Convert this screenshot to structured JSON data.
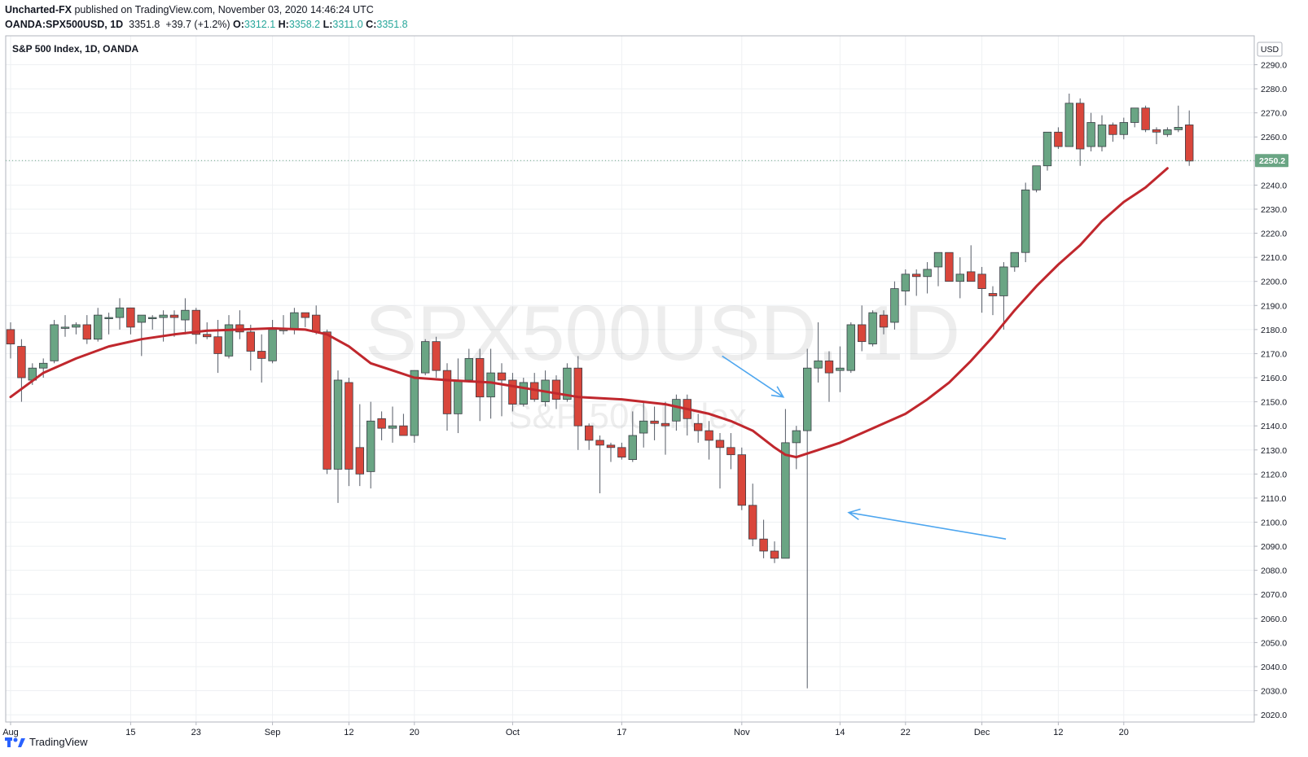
{
  "header": {
    "author": "Uncharted-FX",
    "published": "published on TradingView.com, November 03, 2020 14:46:24 UTC",
    "symbol": "OANDA:SPX500USD, 1D",
    "price": "3351.8",
    "change": "+39.7 (+1.2%)",
    "o_label": "O:",
    "o_value": "3312.1",
    "h_label": "H:",
    "h_value": "3358.2",
    "l_label": "L:",
    "l_value": "3311.0",
    "c_label": "C:",
    "c_value": "3351.8"
  },
  "footer": {
    "brand": "TradingView"
  },
  "colors": {
    "up": "#6aa584",
    "down": "#d9463b",
    "ma": "#c0272d",
    "annotation": "#4ea6ef",
    "grid": "#eef0f3"
  },
  "chart_data": {
    "type": "candlestick",
    "legend": "S&P 500 Index, 1D, OANDA",
    "watermark": {
      "symbol": "SPX500USD, 1D",
      "name": "S&P 500 Index"
    },
    "currency": "USD",
    "last_price_label": "2250.2",
    "ylim": [
      2017,
      2302
    ],
    "y_ticks": [
      2020,
      2030,
      2040,
      2050,
      2060,
      2070,
      2080,
      2090,
      2100,
      2110,
      2120,
      2130,
      2140,
      2150,
      2160,
      2170,
      2180,
      2190,
      2200,
      2210,
      2220,
      2230,
      2240,
      2250,
      2260,
      2270,
      2280,
      2290
    ],
    "x_ticks": [
      {
        "label": "Aug",
        "index": 0
      },
      {
        "label": "15",
        "index": 11
      },
      {
        "label": "23",
        "index": 17
      },
      {
        "label": "Sep",
        "index": 24
      },
      {
        "label": "12",
        "index": 31
      },
      {
        "label": "20",
        "index": 37
      },
      {
        "label": "Oct",
        "index": 46
      },
      {
        "label": "17",
        "index": 56
      },
      {
        "label": "Nov",
        "index": 67
      },
      {
        "label": "14",
        "index": 76
      },
      {
        "label": "22",
        "index": 82
      },
      {
        "label": "Dec",
        "index": 89
      },
      {
        "label": "12",
        "index": 96
      },
      {
        "label": "20",
        "index": 102
      }
    ],
    "candles": [
      [
        2180,
        2183,
        2168,
        2174
      ],
      [
        2173,
        2176,
        2150,
        2160
      ],
      [
        2159,
        2166,
        2157,
        2164
      ],
      [
        2164,
        2168,
        2160,
        2166
      ],
      [
        2167,
        2184,
        2166,
        2182
      ],
      [
        2181,
        2186,
        2177,
        2181
      ],
      [
        2181,
        2183,
        2178,
        2182
      ],
      [
        2182,
        2186,
        2174,
        2176
      ],
      [
        2176,
        2189,
        2175,
        2186
      ],
      [
        2185,
        2187,
        2178,
        2185
      ],
      [
        2185,
        2193,
        2180,
        2189
      ],
      [
        2189,
        2189,
        2178,
        2181
      ],
      [
        2183,
        2186,
        2169,
        2186
      ],
      [
        2185,
        2186,
        2180,
        2185
      ],
      [
        2185,
        2188,
        2175,
        2186
      ],
      [
        2186,
        2188,
        2177,
        2185
      ],
      [
        2184,
        2193,
        2178,
        2188
      ],
      [
        2188,
        2189,
        2174,
        2178
      ],
      [
        2178,
        2183,
        2176,
        2177
      ],
      [
        2177,
        2184,
        2162,
        2170
      ],
      [
        2169,
        2186,
        2168,
        2182
      ],
      [
        2182,
        2188,
        2176,
        2179
      ],
      [
        2179,
        2182,
        2163,
        2171
      ],
      [
        2171,
        2178,
        2158,
        2168
      ],
      [
        2167,
        2184,
        2166,
        2180
      ],
      [
        2180,
        2186,
        2178,
        2180
      ],
      [
        2180,
        2189,
        2178,
        2187
      ],
      [
        2187,
        2187,
        2181,
        2185
      ],
      [
        2186,
        2190,
        2178,
        2179
      ],
      [
        2179,
        2180,
        2120,
        2122
      ],
      [
        2122,
        2163,
        2108,
        2159
      ],
      [
        2158,
        2160,
        2115,
        2122
      ],
      [
        2131,
        2149,
        2115,
        2120
      ],
      [
        2121,
        2150,
        2114,
        2142
      ],
      [
        2143,
        2146,
        2134,
        2139
      ],
      [
        2139,
        2148,
        2133,
        2140
      ],
      [
        2140,
        2145,
        2136,
        2136
      ],
      [
        2136,
        2162,
        2133,
        2163
      ],
      [
        2162,
        2176,
        2161,
        2175
      ],
      [
        2175,
        2177,
        2160,
        2163
      ],
      [
        2163,
        2166,
        2138,
        2145
      ],
      [
        2145,
        2168,
        2137,
        2159
      ],
      [
        2159,
        2172,
        2158,
        2168
      ],
      [
        2168,
        2172,
        2142,
        2152
      ],
      [
        2152,
        2172,
        2143,
        2162
      ],
      [
        2162,
        2166,
        2144,
        2159
      ],
      [
        2159,
        2162,
        2146,
        2149
      ],
      [
        2149,
        2160,
        2148,
        2158
      ],
      [
        2158,
        2162,
        2150,
        2151
      ],
      [
        2150,
        2163,
        2148,
        2159
      ],
      [
        2159,
        2161,
        2147,
        2151
      ],
      [
        2151,
        2166,
        2150,
        2164
      ],
      [
        2164,
        2169,
        2130,
        2140
      ],
      [
        2140,
        2141,
        2130,
        2134
      ],
      [
        2134,
        2136,
        2112,
        2132
      ],
      [
        2132,
        2133,
        2125,
        2131
      ],
      [
        2131,
        2133,
        2126,
        2127
      ],
      [
        2126,
        2146,
        2125,
        2136
      ],
      [
        2137,
        2150,
        2131,
        2142
      ],
      [
        2142,
        2148,
        2134,
        2141
      ],
      [
        2141,
        2150,
        2128,
        2140
      ],
      [
        2142,
        2153,
        2138,
        2151
      ],
      [
        2151,
        2153,
        2136,
        2143
      ],
      [
        2141,
        2145,
        2133,
        2138
      ],
      [
        2138,
        2142,
        2126,
        2134
      ],
      [
        2134,
        2137,
        2114,
        2131
      ],
      [
        2131,
        2137,
        2122,
        2128
      ],
      [
        2128,
        2131,
        2105,
        2107
      ],
      [
        2107,
        2116,
        2090,
        2093
      ],
      [
        2093,
        2101,
        2085,
        2088
      ],
      [
        2088,
        2092,
        2083,
        2085
      ],
      [
        2085,
        2147,
        2085,
        2133
      ],
      [
        2133,
        2140,
        2122,
        2138
      ],
      [
        2138,
        2172,
        2031,
        2164
      ],
      [
        2164,
        2183,
        2158,
        2167
      ],
      [
        2167,
        2171,
        2150,
        2162
      ],
      [
        2163,
        2173,
        2154,
        2164
      ],
      [
        2163,
        2183,
        2162,
        2182
      ],
      [
        2182,
        2190,
        2171,
        2175
      ],
      [
        2174,
        2188,
        2173,
        2187
      ],
      [
        2186,
        2188,
        2178,
        2181
      ],
      [
        2183,
        2200,
        2180,
        2197
      ],
      [
        2196,
        2205,
        2190,
        2203
      ],
      [
        2203,
        2205,
        2194,
        2202
      ],
      [
        2202,
        2208,
        2195,
        2205
      ],
      [
        2206,
        2212,
        2198,
        2212
      ],
      [
        2212,
        2212,
        2201,
        2200
      ],
      [
        2200,
        2210,
        2193,
        2203
      ],
      [
        2204,
        2215,
        2200,
        2200
      ],
      [
        2203,
        2206,
        2187,
        2197
      ],
      [
        2195,
        2198,
        2186,
        2194
      ],
      [
        2194,
        2208,
        2180,
        2206
      ],
      [
        2206,
        2212,
        2204,
        2212
      ],
      [
        2212,
        2241,
        2208,
        2238
      ],
      [
        2238,
        2246,
        2237,
        2248
      ],
      [
        2248,
        2262,
        2246,
        2262
      ],
      [
        2262,
        2264,
        2255,
        2256
      ],
      [
        2256,
        2278,
        2256,
        2274
      ],
      [
        2274,
        2276,
        2248,
        2255
      ],
      [
        2256,
        2270,
        2254,
        2266
      ],
      [
        2256,
        2269,
        2254,
        2265
      ],
      [
        2265,
        2266,
        2258,
        2261
      ],
      [
        2261,
        2268,
        2259,
        2266
      ],
      [
        2266,
        2271,
        2264,
        2272
      ],
      [
        2272,
        2273,
        2262,
        2263
      ],
      [
        2263,
        2264,
        2257,
        2262
      ],
      [
        2261,
        2264,
        2260,
        2263
      ],
      [
        2263,
        2273,
        2262,
        2264
      ],
      [
        2265,
        2271,
        2248,
        2250
      ]
    ],
    "moving_average": [
      {
        "index": 0,
        "value": 2152
      },
      {
        "index": 3,
        "value": 2162
      },
      {
        "index": 6,
        "value": 2168
      },
      {
        "index": 9,
        "value": 2173
      },
      {
        "index": 12,
        "value": 2176
      },
      {
        "index": 15,
        "value": 2178
      },
      {
        "index": 18,
        "value": 2179.5
      },
      {
        "index": 21,
        "value": 2180
      },
      {
        "index": 24,
        "value": 2180.5
      },
      {
        "index": 27,
        "value": 2180
      },
      {
        "index": 29,
        "value": 2178
      },
      {
        "index": 31,
        "value": 2173
      },
      {
        "index": 33,
        "value": 2166
      },
      {
        "index": 35,
        "value": 2163
      },
      {
        "index": 37,
        "value": 2160
      },
      {
        "index": 40,
        "value": 2159
      },
      {
        "index": 44,
        "value": 2158
      },
      {
        "index": 48,
        "value": 2155
      },
      {
        "index": 52,
        "value": 2152
      },
      {
        "index": 56,
        "value": 2151
      },
      {
        "index": 60,
        "value": 2149
      },
      {
        "index": 62,
        "value": 2147
      },
      {
        "index": 64,
        "value": 2145
      },
      {
        "index": 66,
        "value": 2142
      },
      {
        "index": 68,
        "value": 2138
      },
      {
        "index": 70,
        "value": 2131
      },
      {
        "index": 71,
        "value": 2128
      },
      {
        "index": 72,
        "value": 2127
      },
      {
        "index": 74,
        "value": 2130
      },
      {
        "index": 76,
        "value": 2133
      },
      {
        "index": 78,
        "value": 2137
      },
      {
        "index": 80,
        "value": 2141
      },
      {
        "index": 82,
        "value": 2145
      },
      {
        "index": 84,
        "value": 2151
      },
      {
        "index": 86,
        "value": 2158
      },
      {
        "index": 88,
        "value": 2167
      },
      {
        "index": 90,
        "value": 2177
      },
      {
        "index": 92,
        "value": 2188
      },
      {
        "index": 94,
        "value": 2198
      },
      {
        "index": 96,
        "value": 2207
      },
      {
        "index": 98,
        "value": 2215
      },
      {
        "index": 100,
        "value": 2225
      },
      {
        "index": 102,
        "value": 2233
      },
      {
        "index": 104,
        "value": 2239
      },
      {
        "index": 106,
        "value": 2247
      }
    ],
    "annotations": [
      {
        "type": "arrow",
        "from": {
          "index": 65.2,
          "value": 2169
        },
        "to": {
          "index": 70.8,
          "value": 2152
        }
      },
      {
        "type": "arrow",
        "from": {
          "index": 91.2,
          "value": 2093
        },
        "to": {
          "index": 76.8,
          "value": 2104
        }
      }
    ]
  }
}
